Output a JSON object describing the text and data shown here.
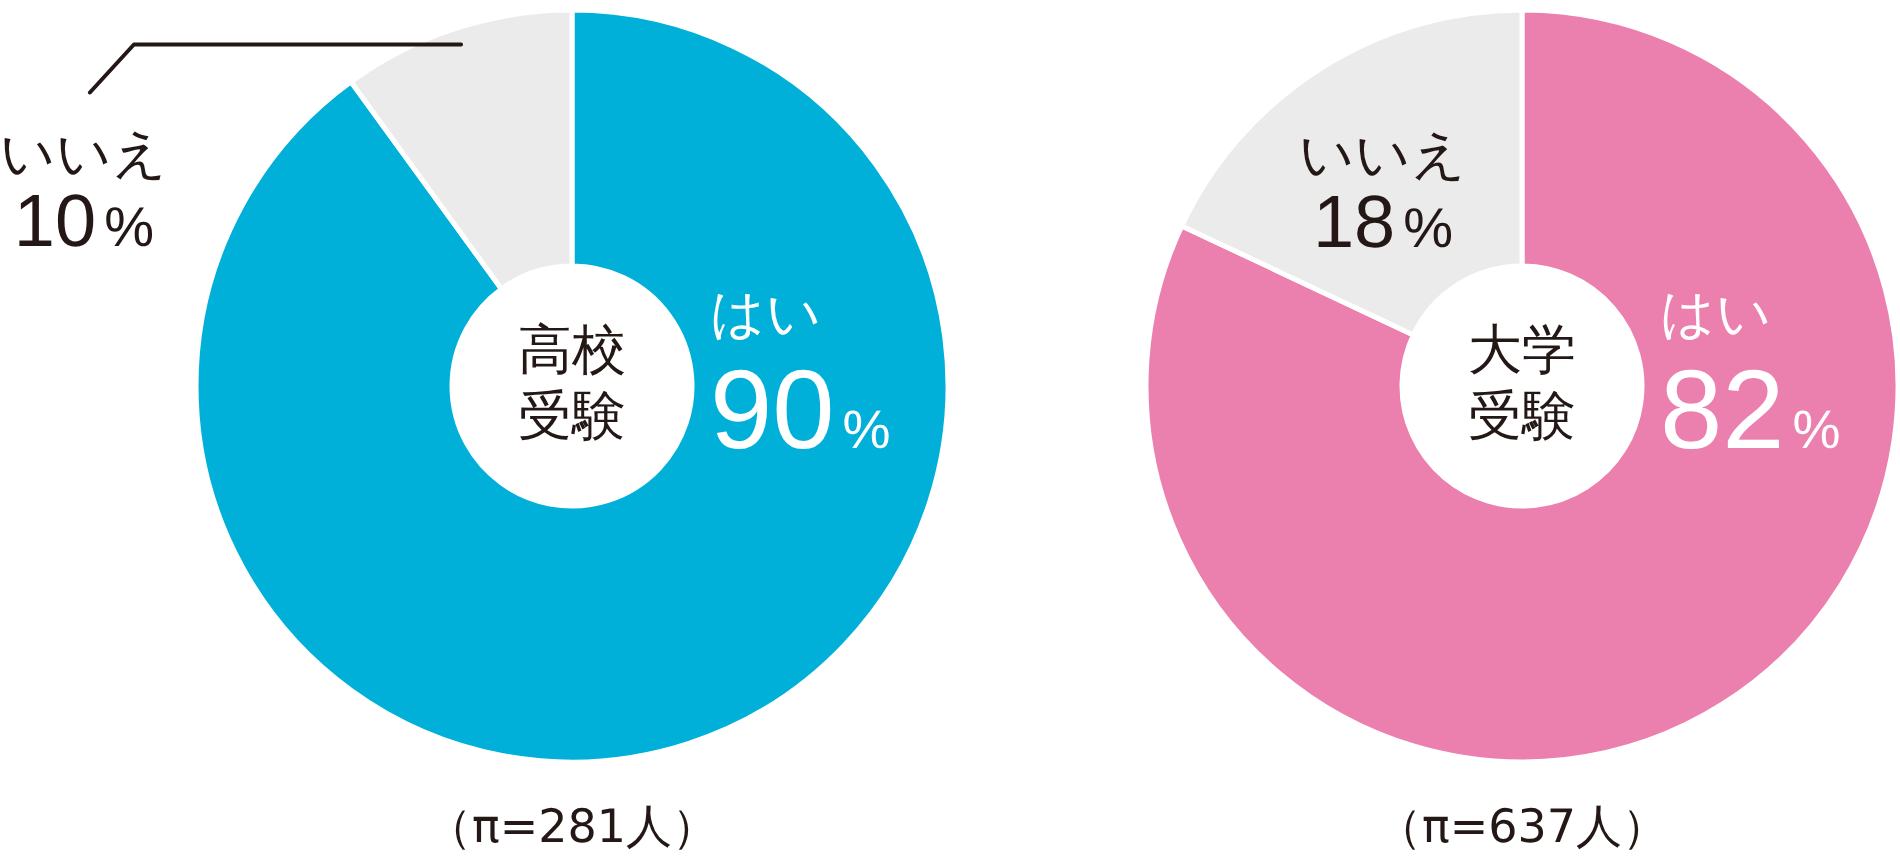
{
  "chart_data": [
    {
      "type": "donut",
      "title": "高校受験",
      "categories": [
        "はい",
        "いいえ"
      ],
      "values": [
        90,
        10
      ],
      "colors": [
        "#00b0d9",
        "#ebebeb"
      ],
      "value_labels": [
        "90%",
        "10%"
      ],
      "annotations": [
        "（π=281人）"
      ]
    },
    {
      "type": "donut",
      "title": "大学受験",
      "categories": [
        "はい",
        "いいえ"
      ],
      "values": [
        82,
        18
      ],
      "colors": [
        "#eb7fae",
        "#ebebeb"
      ],
      "value_labels": [
        "82%",
        "18%"
      ],
      "annotations": [
        "（π=637人）"
      ]
    }
  ]
}
